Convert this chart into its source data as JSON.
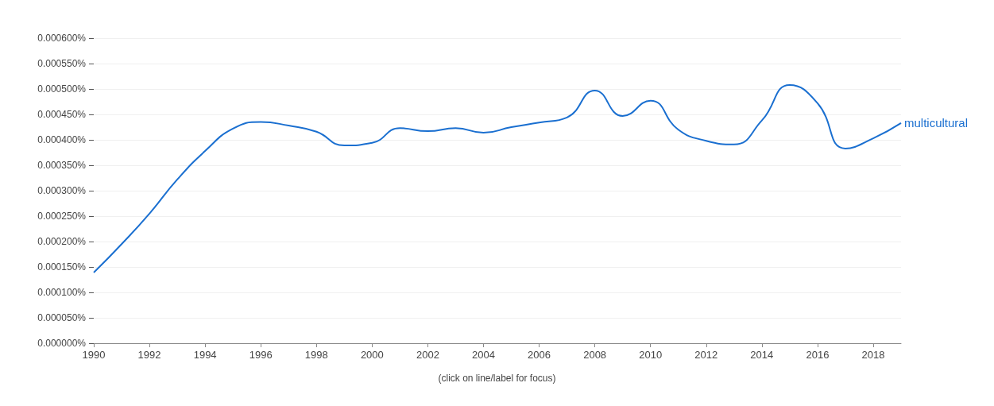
{
  "chart_data": {
    "type": "line",
    "x": [
      1990,
      1991,
      1992,
      1993,
      1994,
      1995,
      1996,
      1997,
      1998,
      1999,
      2000,
      2001,
      2002,
      2003,
      2004,
      2005,
      2006,
      2007,
      2008,
      2009,
      2010,
      2011,
      2012,
      2013,
      2014,
      2015,
      2016,
      2017,
      2018,
      2019
    ],
    "series": [
      {
        "name": "multicultural",
        "color": "#1a6fd0",
        "values": [
          0.000139,
          0.000195,
          0.000255,
          0.000322,
          0.000378,
          0.000422,
          0.000435,
          0.000428,
          0.000416,
          0.000389,
          0.000394,
          0.000423,
          0.000417,
          0.000423,
          0.000414,
          0.000425,
          0.000434,
          0.000444,
          0.000497,
          0.000447,
          0.000477,
          0.00042,
          0.000398,
          0.000391,
          0.000438,
          0.000508,
          0.000472,
          0.000383,
          0.000403,
          0.000433
        ]
      }
    ],
    "xlim": [
      1990,
      2019
    ],
    "xticks": [
      1990,
      1992,
      1994,
      1996,
      1998,
      2000,
      2002,
      2004,
      2006,
      2008,
      2010,
      2012,
      2014,
      2016,
      2018
    ],
    "ylim": [
      0,
      0.0006
    ],
    "yticks": [
      {
        "value": 0,
        "label": "0.000000%"
      },
      {
        "value": 5e-05,
        "label": "0.000050%"
      },
      {
        "value": 0.0001,
        "label": "0.000100%"
      },
      {
        "value": 0.00015,
        "label": "0.000150%"
      },
      {
        "value": 0.0002,
        "label": "0.000200%"
      },
      {
        "value": 0.00025,
        "label": "0.000250%"
      },
      {
        "value": 0.0003,
        "label": "0.000300%"
      },
      {
        "value": 0.00035,
        "label": "0.000350%"
      },
      {
        "value": 0.0004,
        "label": "0.000400%"
      },
      {
        "value": 0.00045,
        "label": "0.000450%"
      },
      {
        "value": 0.0005,
        "label": "0.000500%"
      },
      {
        "value": 0.00055,
        "label": "0.000550%"
      },
      {
        "value": 0.0006,
        "label": "0.000600%"
      }
    ],
    "grid": "y",
    "marker": "none",
    "line_style": "solid",
    "legend": false,
    "annotations": [
      "(click on line/label for focus)"
    ]
  }
}
